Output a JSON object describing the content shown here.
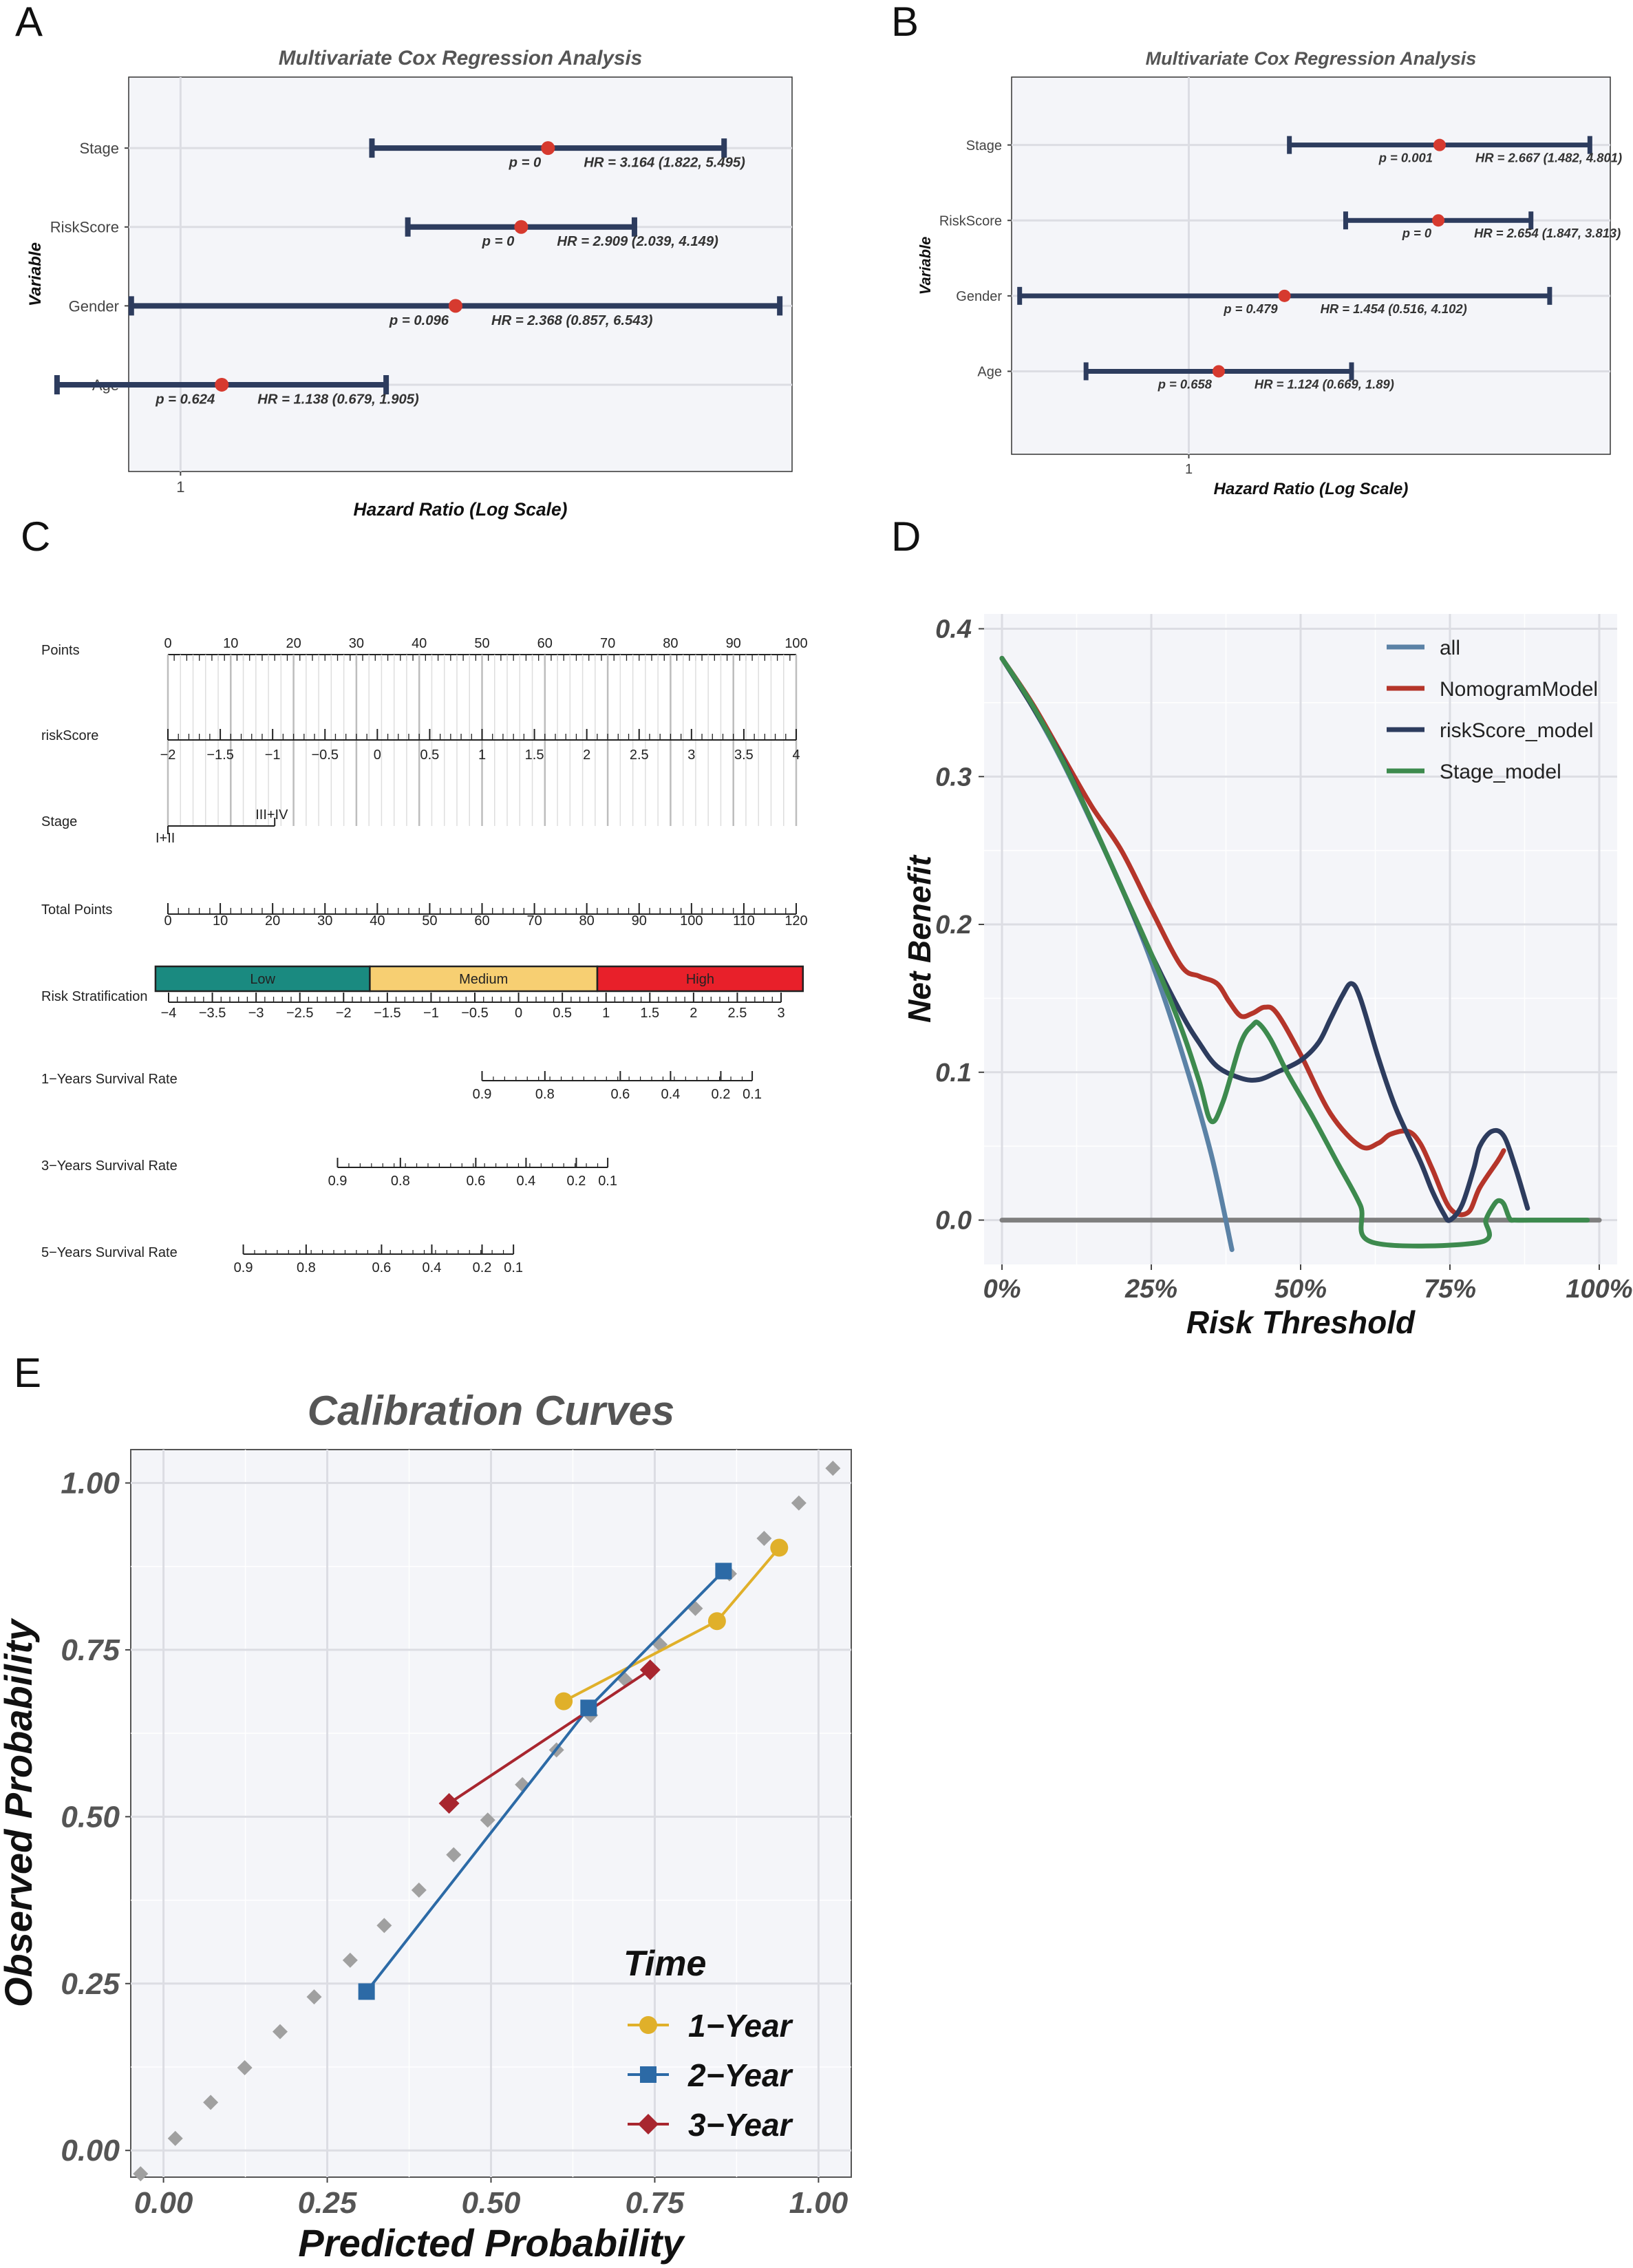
{
  "panels": {
    "A": "A",
    "B": "B",
    "C": "C",
    "D": "D",
    "E": "E"
  },
  "chart_data": [
    {
      "id": "A",
      "type": "forest",
      "title": "Multivariate Cox Regression Analysis",
      "xlabel": "Hazard Ratio (Log Scale)",
      "ylabel": "Variable",
      "xscale": "log",
      "xlim": [
        0.85,
        6.8
      ],
      "xticks": [
        {
          "v": 1,
          "label": "1"
        }
      ],
      "rows": [
        {
          "label": "Stage",
          "hr": 3.164,
          "lo": 1.822,
          "hi": 5.495,
          "p_text": "p = 0",
          "hr_text": "HR = 3.164 (1.822, 5.495)"
        },
        {
          "label": "RiskScore",
          "hr": 2.909,
          "lo": 2.039,
          "hi": 4.149,
          "p_text": "p = 0",
          "hr_text": "HR = 2.909 (2.039, 4.149)"
        },
        {
          "label": "Gender",
          "hr": 2.368,
          "lo": 0.857,
          "hi": 6.543,
          "p_text": "p = 0.096",
          "hr_text": "HR = 2.368 (0.857, 6.543)"
        },
        {
          "label": "Age",
          "hr": 1.138,
          "lo": 0.679,
          "hi": 1.905,
          "p_text": "p = 0.624",
          "hr_text": "HR = 1.138 (0.679, 1.905)"
        }
      ]
    },
    {
      "id": "B",
      "type": "forest",
      "title": "Multivariate Cox Regression Analysis",
      "xlabel": "Hazard Ratio (Log Scale)",
      "ylabel": "Variable",
      "xscale": "log",
      "xlim": [
        0.5,
        5.2
      ],
      "xticks": [
        {
          "v": 1,
          "label": "1"
        }
      ],
      "rows": [
        {
          "label": "Stage",
          "hr": 2.667,
          "lo": 1.482,
          "hi": 4.801,
          "p_text": "p = 0.001",
          "hr_text": "HR = 2.667 (1.482, 4.801)"
        },
        {
          "label": "RiskScore",
          "hr": 2.654,
          "lo": 1.847,
          "hi": 3.813,
          "p_text": "p = 0",
          "hr_text": "HR = 2.654 (1.847, 3.813)"
        },
        {
          "label": "Gender",
          "hr": 1.454,
          "lo": 0.516,
          "hi": 4.102,
          "p_text": "p = 0.479",
          "hr_text": "HR = 1.454 (0.516, 4.102)"
        },
        {
          "label": "Age",
          "hr": 1.124,
          "lo": 0.669,
          "hi": 1.89,
          "p_text": "p = 0.658",
          "hr_text": "HR = 1.124 (0.669, 1.89)"
        }
      ]
    },
    {
      "id": "C",
      "type": "nomogram",
      "rows": [
        {
          "label": "Points",
          "axis": [
            0,
            100
          ],
          "ticks": [
            0,
            10,
            20,
            30,
            40,
            50,
            60,
            70,
            80,
            90,
            100
          ],
          "labels": [
            "0",
            "10",
            "20",
            "30",
            "40",
            "50",
            "60",
            "70",
            "80",
            "90",
            "100"
          ],
          "minor": 1
        },
        {
          "label": "riskScore",
          "axis": [
            -2,
            4
          ],
          "ticks": [
            -2,
            -1.5,
            -1,
            -0.5,
            0,
            0.5,
            1,
            1.5,
            2,
            2.5,
            3,
            3.5,
            4
          ],
          "labels": [
            "−2",
            "−1.5",
            "−1",
            "−0.5",
            "0",
            "0.5",
            "1",
            "1.5",
            "2",
            "2.5",
            "3",
            "3.5",
            "4"
          ],
          "minor": 0.1
        },
        {
          "label": "Stage",
          "categories": [
            "I+II",
            "III+IV"
          ],
          "points": [
            0,
            17
          ]
        },
        {
          "label": "Total Points",
          "axis": [
            0,
            120
          ],
          "ticks": [
            0,
            10,
            20,
            30,
            40,
            50,
            60,
            70,
            80,
            90,
            100,
            110,
            120
          ],
          "labels": [
            "0",
            "10",
            "20",
            "30",
            "40",
            "50",
            "60",
            "70",
            "80",
            "90",
            "100",
            "110",
            "120"
          ],
          "minor": 1
        },
        {
          "label": "Risk Stratification",
          "axis": [
            -4,
            3
          ],
          "ticks": [
            -4,
            -3.5,
            -3,
            -2.5,
            -2,
            -1.5,
            -1,
            -0.5,
            0,
            0.5,
            1,
            1.5,
            2,
            2.5,
            3
          ],
          "labels": [
            "−4",
            "−3.5",
            "−3",
            "−2.5",
            "−2",
            "−1.5",
            "−1",
            "−0.5",
            "0",
            "0.5",
            "1",
            "1.5",
            "2",
            "2.5",
            "3"
          ],
          "bands": [
            {
              "label": "Low",
              "from": -4.15,
              "to": -1.7,
              "color": "#1a8a80"
            },
            {
              "label": "Medium",
              "from": -1.7,
              "to": 0.9,
              "color": "#f7cf72"
            },
            {
              "label": "High",
              "from": 0.9,
              "to": 3.25,
              "color": "#e8202a"
            }
          ]
        },
        {
          "label": "1−Years Survival Rate",
          "pts": [
            {
              "label": "0.9",
              "v": 50
            },
            {
              "label": "0.8",
              "v": 60
            },
            {
              "label": "0.6",
              "v": 72
            },
            {
              "label": "0.4",
              "v": 80
            },
            {
              "label": "0.2",
              "v": 88
            },
            {
              "label": "0.1",
              "v": 93
            }
          ]
        },
        {
          "label": "3−Years Survival Rate",
          "pts": [
            {
              "label": "0.9",
              "v": 27
            },
            {
              "label": "0.8",
              "v": 37
            },
            {
              "label": "0.6",
              "v": 49
            },
            {
              "label": "0.4",
              "v": 57
            },
            {
              "label": "0.2",
              "v": 65
            },
            {
              "label": "0.1",
              "v": 70
            }
          ]
        },
        {
          "label": "5−Years Survival Rate",
          "pts": [
            {
              "label": "0.9",
              "v": 12
            },
            {
              "label": "0.8",
              "v": 22
            },
            {
              "label": "0.6",
              "v": 34
            },
            {
              "label": "0.4",
              "v": 42
            },
            {
              "label": "0.2",
              "v": 50
            },
            {
              "label": "0.1",
              "v": 55
            }
          ]
        }
      ]
    },
    {
      "id": "D",
      "type": "line",
      "title": "",
      "xlabel": "Risk Threshold",
      "ylabel": "Net Benefit",
      "xlim": [
        -0.03,
        1.03
      ],
      "ylim": [
        -0.03,
        0.41
      ],
      "xticks": [
        {
          "v": 0,
          "label": "0%"
        },
        {
          "v": 0.25,
          "label": "25%"
        },
        {
          "v": 0.5,
          "label": "50%"
        },
        {
          "v": 0.75,
          "label": "75%"
        },
        {
          "v": 1,
          "label": "100%"
        }
      ],
      "yticks": [
        {
          "v": 0,
          "label": "0.0"
        },
        {
          "v": 0.1,
          "label": "0.1"
        },
        {
          "v": 0.2,
          "label": "0.2"
        },
        {
          "v": 0.3,
          "label": "0.3"
        },
        {
          "v": 0.4,
          "label": "0.4"
        }
      ],
      "series": [
        {
          "name": "none",
          "legend": false,
          "color": "#7f7f7f",
          "x": [
            0,
            1
          ],
          "y": [
            0,
            0
          ]
        },
        {
          "name": "all",
          "color": "#5b82a6",
          "x": [
            0,
            0.05,
            0.1,
            0.15,
            0.2,
            0.25,
            0.3,
            0.35,
            0.385
          ],
          "y": [
            0.38,
            0.348,
            0.311,
            0.269,
            0.225,
            0.175,
            0.115,
            0.045,
            -0.02
          ]
        },
        {
          "name": "NomogramModel",
          "color": "#b5352a",
          "x": [
            0,
            0.05,
            0.1,
            0.15,
            0.2,
            0.25,
            0.3,
            0.33,
            0.36,
            0.38,
            0.4,
            0.42,
            0.44,
            0.46,
            0.5,
            0.55,
            0.6,
            0.63,
            0.65,
            0.68,
            0.7,
            0.72,
            0.75,
            0.78,
            0.8,
            0.83,
            0.84
          ],
          "y": [
            0.38,
            0.35,
            0.315,
            0.28,
            0.25,
            0.21,
            0.172,
            0.165,
            0.16,
            0.148,
            0.138,
            0.14,
            0.144,
            0.14,
            0.112,
            0.072,
            0.05,
            0.052,
            0.058,
            0.06,
            0.052,
            0.035,
            0.008,
            0.005,
            0.022,
            0.04,
            0.047
          ]
        },
        {
          "name": "riskScore_model",
          "color": "#2d3c5e",
          "x": [
            0,
            0.05,
            0.1,
            0.15,
            0.2,
            0.25,
            0.3,
            0.33,
            0.36,
            0.4,
            0.43,
            0.46,
            0.5,
            0.53,
            0.55,
            0.57,
            0.585,
            0.6,
            0.63,
            0.66,
            0.7,
            0.72,
            0.74,
            0.75,
            0.77,
            0.79,
            0.8,
            0.82,
            0.84,
            0.86,
            0.88
          ],
          "y": [
            0.38,
            0.348,
            0.313,
            0.27,
            0.225,
            0.18,
            0.14,
            0.12,
            0.104,
            0.096,
            0.095,
            0.1,
            0.108,
            0.12,
            0.136,
            0.152,
            0.16,
            0.15,
            0.11,
            0.075,
            0.04,
            0.02,
            0.004,
            0,
            0.01,
            0.035,
            0.05,
            0.06,
            0.057,
            0.035,
            0.008
          ]
        },
        {
          "name": "Stage_model",
          "color": "#3d8a4e",
          "x": [
            0,
            0.05,
            0.1,
            0.15,
            0.2,
            0.25,
            0.3,
            0.33,
            0.35,
            0.37,
            0.4,
            0.42,
            0.43,
            0.45,
            0.48,
            0.52,
            0.56,
            0.6,
            0.62,
            0.8,
            0.81,
            0.82,
            0.83,
            0.84,
            0.85,
            0.86,
            0.9,
            0.95,
            0.98
          ],
          "y": [
            0.38,
            0.349,
            0.312,
            0.27,
            0.225,
            0.18,
            0.13,
            0.094,
            0.067,
            0.08,
            0.12,
            0.132,
            0.133,
            0.122,
            0.098,
            0.07,
            0.04,
            0.01,
            -0.015,
            -0.015,
            0,
            0.008,
            0.013,
            0.011,
            0.001,
            0,
            0,
            0,
            0
          ]
        }
      ]
    },
    {
      "id": "E",
      "type": "line",
      "title": "Calibration Curves",
      "xlabel": "Predicted Probability",
      "ylabel": "Observed Probability",
      "xlim": [
        -0.05,
        1.05
      ],
      "ylim": [
        -0.04,
        1.05
      ],
      "xticks": [
        {
          "v": 0,
          "label": "0.00"
        },
        {
          "v": 0.25,
          "label": "0.25"
        },
        {
          "v": 0.5,
          "label": "0.50"
        },
        {
          "v": 0.75,
          "label": "0.75"
        },
        {
          "v": 1,
          "label": "1.00"
        }
      ],
      "yticks": [
        {
          "v": 0,
          "label": "0.00"
        },
        {
          "v": 0.25,
          "label": "0.25"
        },
        {
          "v": 0.5,
          "label": "0.50"
        },
        {
          "v": 0.75,
          "label": "0.75"
        },
        {
          "v": 1,
          "label": "1.00"
        }
      ],
      "legend_title": "Time",
      "diagonal": {
        "color": "#a0a0a0",
        "x": [
          -0.035,
          0.018,
          0.072,
          0.124,
          0.178,
          0.23,
          0.285,
          0.337,
          0.39,
          0.443,
          0.495,
          0.548,
          0.6,
          0.652,
          0.705,
          0.758,
          0.812,
          0.864,
          0.917,
          0.97,
          1.022
        ],
        "y": [
          -0.035,
          0.018,
          0.072,
          0.124,
          0.178,
          0.23,
          0.285,
          0.337,
          0.39,
          0.443,
          0.495,
          0.548,
          0.6,
          0.652,
          0.705,
          0.758,
          0.812,
          0.864,
          0.917,
          0.97,
          1.022
        ]
      },
      "series": [
        {
          "name": "1−Year",
          "color": "#e0b02a",
          "marker": "circle",
          "x": [
            0.611,
            0.845,
            0.94
          ],
          "y": [
            0.673,
            0.793,
            0.903
          ]
        },
        {
          "name": "2−Year",
          "color": "#2c6aa6",
          "marker": "square",
          "x": [
            0.31,
            0.649,
            0.855
          ],
          "y": [
            0.238,
            0.663,
            0.868
          ]
        },
        {
          "name": "3−Year",
          "color": "#a8262f",
          "marker": "diamond",
          "x": [
            0.436,
            0.743
          ],
          "y": [
            0.52,
            0.72
          ]
        }
      ]
    }
  ]
}
